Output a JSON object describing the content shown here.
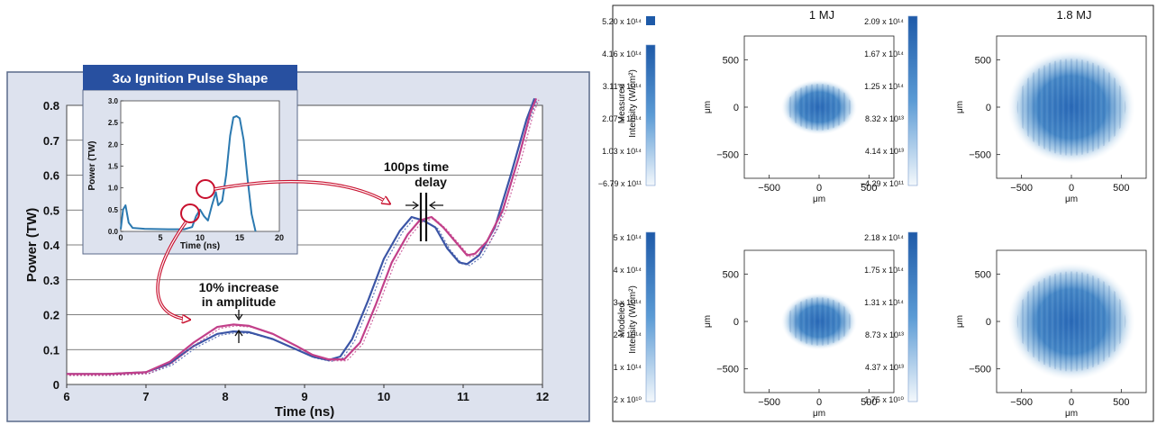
{
  "colors": {
    "panel_bg": "#dde2ee",
    "blue": "#3b55a6",
    "magenta": "#c2408a",
    "inset_line": "#2b79b0",
    "inset_title_bg": "#2850a0",
    "arrow_red": "#c8102e",
    "colormap_low": "#f4f8fc",
    "colormap_high": "#1e5aa8"
  },
  "left": {
    "y_axis_label": "Power (TW)",
    "x_axis_label": "Time (ns)",
    "annotation_increase": [
      "10% increase",
      "in amplitude"
    ],
    "annotation_delay": [
      "100ps time",
      "delay"
    ],
    "inset_title": "3ω Ignition Pulse Shape",
    "inset_y_label": "Power (TW)",
    "inset_x_label": "Time (ns)"
  },
  "right": {
    "col_titles": [
      "1 MJ",
      "1.8 MJ"
    ],
    "row_labels": [
      [
        "Measured",
        "Intensity (W/cm²)"
      ],
      [
        "Modeled",
        "Intensity (W/cm²)"
      ]
    ],
    "axis_unit": "μm",
    "colorbars": [
      [
        "5.20 x 10¹⁴",
        "4.16 x 10¹⁴",
        "3.11 x 10¹⁴",
        "2.07 x 10¹⁴",
        "1.03 x 10¹⁴",
        "−6.79 x 10¹¹"
      ],
      [
        "2.09 x 10¹⁴",
        "1.67 x 10¹⁴",
        "1.25 x 10¹⁴",
        "8.32 x 10¹³",
        "4.14 x 10¹³",
        "−4.29 x 10¹¹"
      ],
      [
        "5 x 10¹⁴",
        "4 x 10¹⁴",
        "3 x 10¹⁴",
        "2 x 10¹⁴",
        "1 x 10¹⁴",
        "2 x 10¹⁰"
      ],
      [
        "2.18 x 10¹⁴",
        "1.75 x 10¹⁴",
        "1.31 x 10¹⁴",
        "8.73 x 10¹³",
        "4.37 x 10¹³",
        "1.75 x 10¹⁰"
      ]
    ]
  },
  "chart_data": [
    {
      "type": "line",
      "xlim": [
        6,
        12
      ],
      "ylim": [
        0,
        0.8
      ],
      "x_ticks": [
        "6",
        "7",
        "8",
        "9",
        "10",
        "11",
        "12"
      ],
      "y_ticks": [
        "0",
        "0.1",
        "0.2",
        "0.3",
        "0.4",
        "0.5",
        "0.6",
        "0.7",
        "0.8"
      ],
      "grid": true,
      "series": [
        {
          "color": "#3b55a6",
          "points": [
            [
              6,
              0.03
            ],
            [
              6.5,
              0.03
            ],
            [
              7,
              0.035
            ],
            [
              7.3,
              0.06
            ],
            [
              7.6,
              0.11
            ],
            [
              7.9,
              0.145
            ],
            [
              8.1,
              0.152
            ],
            [
              8.3,
              0.15
            ],
            [
              8.6,
              0.13
            ],
            [
              8.9,
              0.1
            ],
            [
              9.1,
              0.08
            ],
            [
              9.3,
              0.07
            ],
            [
              9.45,
              0.08
            ],
            [
              9.6,
              0.13
            ],
            [
              9.8,
              0.24
            ],
            [
              10,
              0.36
            ],
            [
              10.2,
              0.44
            ],
            [
              10.35,
              0.48
            ],
            [
              10.5,
              0.47
            ],
            [
              10.65,
              0.45
            ],
            [
              10.8,
              0.39
            ],
            [
              10.95,
              0.35
            ],
            [
              11.05,
              0.345
            ],
            [
              11.2,
              0.37
            ],
            [
              11.4,
              0.45
            ],
            [
              11.6,
              0.6
            ],
            [
              11.8,
              0.76
            ],
            [
              11.9,
              0.82
            ]
          ]
        },
        {
          "color": "#c2408a",
          "points": [
            [
              6,
              0.03
            ],
            [
              6.5,
              0.03
            ],
            [
              7,
              0.035
            ],
            [
              7.3,
              0.065
            ],
            [
              7.6,
              0.12
            ],
            [
              7.9,
              0.165
            ],
            [
              8.1,
              0.172
            ],
            [
              8.3,
              0.168
            ],
            [
              8.6,
              0.145
            ],
            [
              8.9,
              0.11
            ],
            [
              9.1,
              0.085
            ],
            [
              9.3,
              0.072
            ],
            [
              9.5,
              0.072
            ],
            [
              9.7,
              0.12
            ],
            [
              9.9,
              0.23
            ],
            [
              10.1,
              0.35
            ],
            [
              10.3,
              0.43
            ],
            [
              10.45,
              0.47
            ],
            [
              10.6,
              0.48
            ],
            [
              10.75,
              0.45
            ],
            [
              10.9,
              0.41
            ],
            [
              11.05,
              0.37
            ],
            [
              11.15,
              0.375
            ],
            [
              11.3,
              0.41
            ],
            [
              11.5,
              0.5
            ],
            [
              11.7,
              0.65
            ],
            [
              11.85,
              0.78
            ],
            [
              11.92,
              0.82
            ]
          ]
        }
      ]
    },
    {
      "type": "line",
      "xlim": [
        0,
        20
      ],
      "ylim": [
        0,
        3
      ],
      "x_ticks": [
        "0",
        "5",
        "10",
        "15",
        "20"
      ],
      "y_ticks": [
        "0.0",
        "0.5",
        "1.0",
        "1.5",
        "2.0",
        "2.5",
        "3.0"
      ],
      "series": [
        {
          "color": "#2b79b0",
          "points": [
            [
              0,
              0.05
            ],
            [
              0.3,
              0.5
            ],
            [
              0.6,
              0.6
            ],
            [
              1,
              0.2
            ],
            [
              1.5,
              0.08
            ],
            [
              3,
              0.06
            ],
            [
              6,
              0.05
            ],
            [
              8,
              0.05
            ],
            [
              9,
              0.1
            ],
            [
              9.5,
              0.35
            ],
            [
              10,
              0.5
            ],
            [
              10.5,
              0.35
            ],
            [
              11,
              0.25
            ],
            [
              11.5,
              0.6
            ],
            [
              12,
              0.9
            ],
            [
              12.3,
              0.6
            ],
            [
              12.8,
              0.7
            ],
            [
              13.3,
              1.3
            ],
            [
              13.8,
              2.2
            ],
            [
              14.2,
              2.62
            ],
            [
              14.6,
              2.65
            ],
            [
              15,
              2.6
            ],
            [
              15.5,
              2.1
            ],
            [
              16,
              1.2
            ],
            [
              16.5,
              0.4
            ],
            [
              17,
              0
            ]
          ]
        }
      ]
    },
    {
      "type": "heatmap",
      "title": "1 MJ",
      "row": "Measured",
      "xlim": [
        -750,
        750
      ],
      "ylim": [
        -750,
        750
      ],
      "x_ticks": [
        "−500",
        "0",
        "500"
      ],
      "y_ticks": [
        "500",
        "0",
        "−500"
      ],
      "xlabel": "μm",
      "ylabel": "μm",
      "colorbar_ticks": [
        "5.20 x 10¹⁴",
        "4.16 x 10¹⁴",
        "3.11 x 10¹⁴",
        "2.07 x 10¹⁴",
        "1.03 x 10¹⁴",
        "−6.79 x 10¹¹"
      ],
      "spot_radius": [
        380,
        290
      ]
    },
    {
      "type": "heatmap",
      "title": "1.8 MJ",
      "row": "Measured",
      "xlim": [
        -750,
        750
      ],
      "ylim": [
        -750,
        750
      ],
      "x_ticks": [
        "−500",
        "0",
        "500"
      ],
      "y_ticks": [
        "500",
        "0",
        "−500"
      ],
      "xlabel": "μm",
      "ylabel": "μm",
      "colorbar_ticks": [
        "2.09 x 10¹⁴",
        "1.67 x 10¹⁴",
        "1.25 x 10¹⁴",
        "8.32 x 10¹³",
        "4.14 x 10¹³",
        "−4.29 x 10¹¹"
      ],
      "spot_radius": [
        640,
        600
      ]
    },
    {
      "type": "heatmap",
      "row": "Modeled",
      "xlim": [
        -750,
        750
      ],
      "ylim": [
        -750,
        750
      ],
      "x_ticks": [
        "−500",
        "0",
        "500"
      ],
      "y_ticks": [
        "500",
        "0",
        "−500"
      ],
      "xlabel": "μm",
      "ylabel": "μm",
      "colorbar_ticks": [
        "5 x 10¹⁴",
        "4 x 10¹⁴",
        "3 x 10¹⁴",
        "2 x 10¹⁴",
        "1 x 10¹⁴",
        "2 x 10¹⁰"
      ],
      "spot_radius": [
        380,
        300
      ]
    },
    {
      "type": "heatmap",
      "row": "Modeled",
      "xlim": [
        -750,
        750
      ],
      "ylim": [
        -750,
        750
      ],
      "x_ticks": [
        "−500",
        "0",
        "500"
      ],
      "y_ticks": [
        "500",
        "0",
        "−500"
      ],
      "xlabel": "μm",
      "ylabel": "μm",
      "colorbar_ticks": [
        "2.18 x 10¹⁴",
        "1.75 x 10¹⁴",
        "1.31 x 10¹⁴",
        "8.73 x 10¹³",
        "4.37 x 10¹³",
        "1.75 x 10¹⁰"
      ],
      "spot_radius": [
        640,
        620
      ]
    }
  ]
}
